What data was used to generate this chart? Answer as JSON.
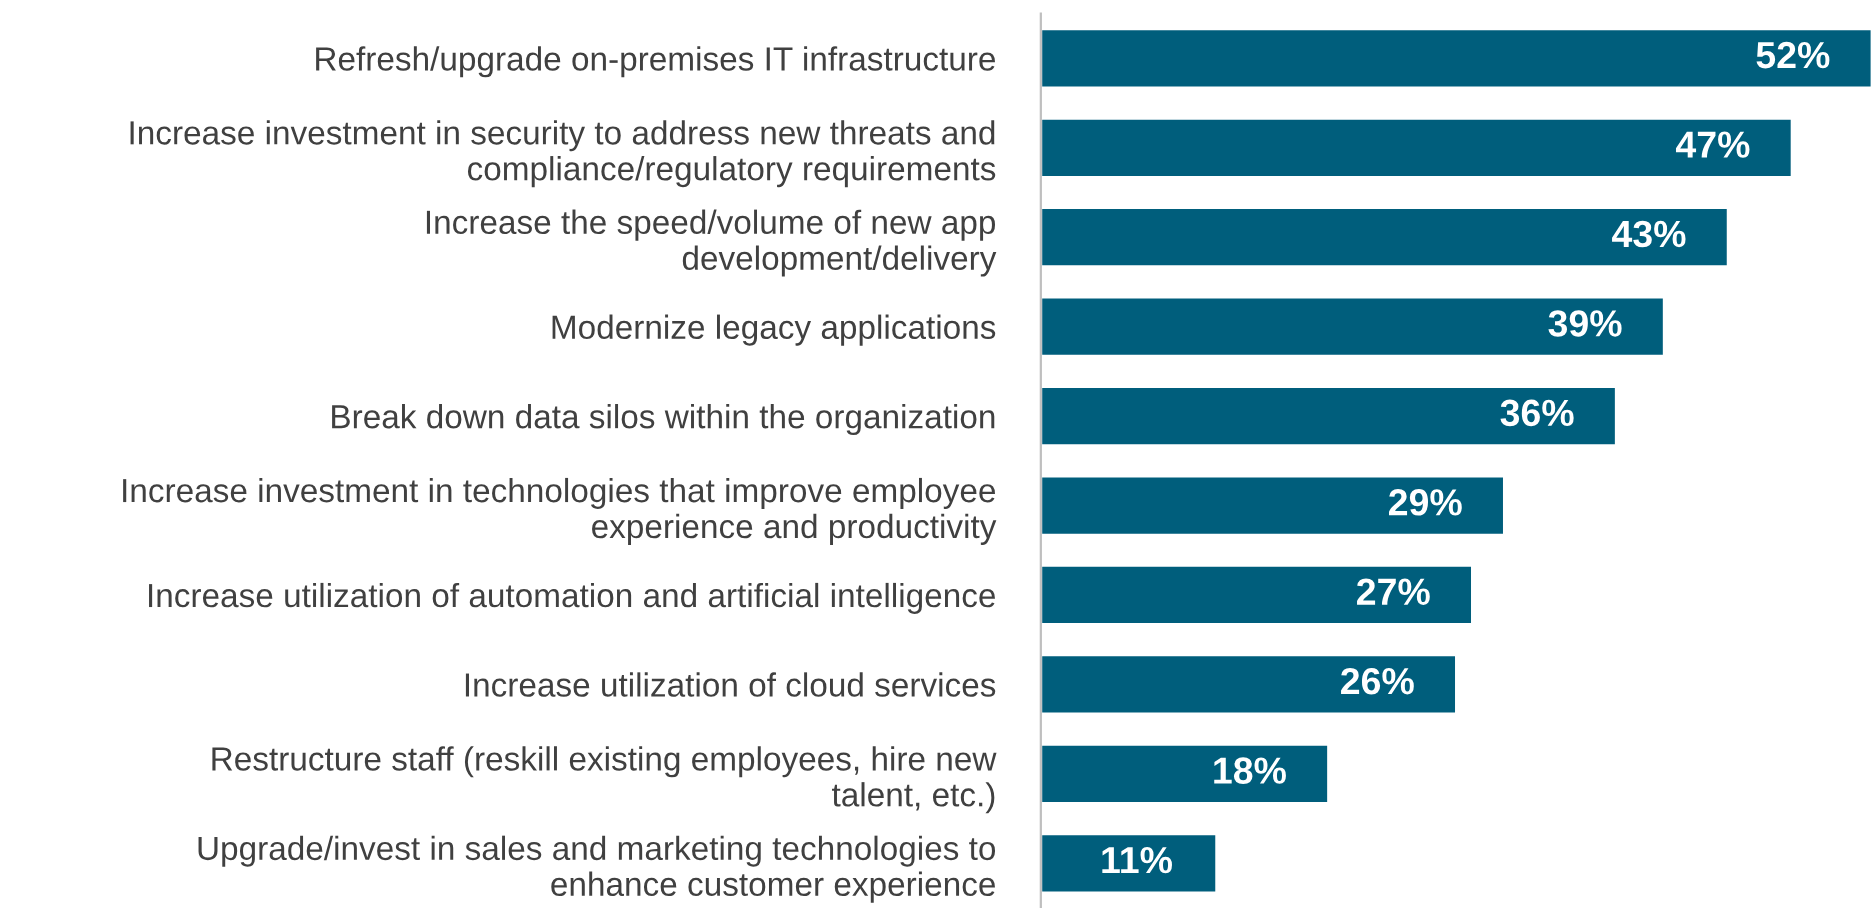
{
  "chart_data": {
    "type": "bar",
    "orientation": "horizontal",
    "categories": [
      "Refresh/upgrade on-premises IT infrastructure",
      "Increase investment in security to address new threats and\ncompliance/regulatory requirements",
      "Increase the speed/volume of new app\ndevelopment/delivery",
      "Modernize legacy applications",
      "Break down data silos within the organization",
      "Increase investment in technologies that improve employee\nexperience and productivity",
      "Increase utilization of automation and artificial intelligence",
      "Increase utilization of cloud services",
      "Restructure staff (reskill existing employees, hire new\ntalent, etc.)",
      "Upgrade/invest in sales and marketing technologies to\nenhance customer experience"
    ],
    "values": [
      52,
      47,
      43,
      39,
      36,
      29,
      27,
      26,
      18,
      11
    ],
    "value_labels": [
      "52%",
      "47%",
      "43%",
      "39%",
      "36%",
      "29%",
      "27%",
      "26%",
      "18%",
      "11%"
    ],
    "color": "#005e7c",
    "xlim": [
      0,
      52
    ],
    "tick_labels": "y",
    "grid": false,
    "legend": false
  }
}
